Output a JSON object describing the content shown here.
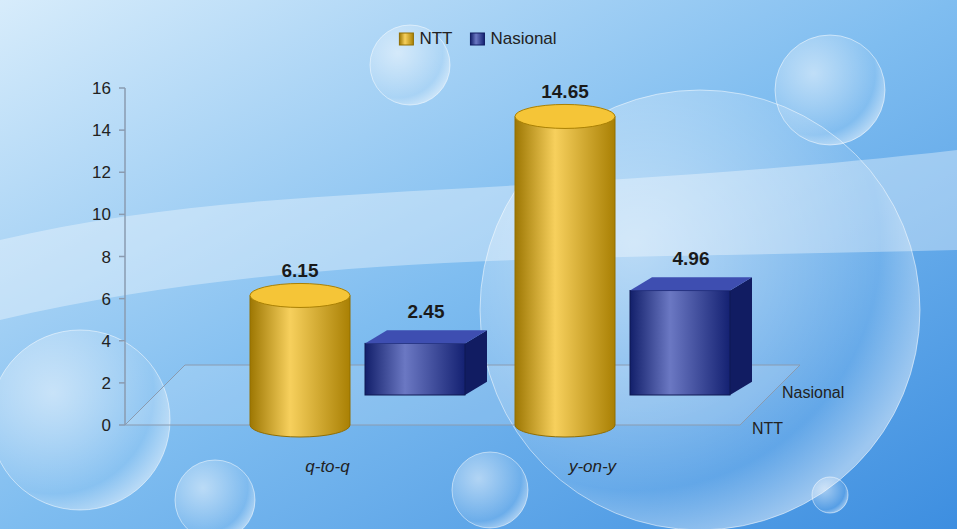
{
  "chart_data": {
    "type": "bar",
    "categories": [
      "q-to-q",
      "y-on-y"
    ],
    "series": [
      {
        "name": "NTT",
        "color": "#f2b705",
        "marker": "cylinder",
        "values": [
          6.15,
          14.65
        ]
      },
      {
        "name": "Nasional",
        "color": "#1c2fa3",
        "marker": "box",
        "values": [
          2.45,
          4.96
        ]
      }
    ],
    "ylim": [
      0,
      16
    ],
    "yticks": [
      0,
      2,
      4,
      6,
      8,
      10,
      12,
      14,
      16
    ],
    "grid": false,
    "legend": "top",
    "data_labels": true
  }
}
